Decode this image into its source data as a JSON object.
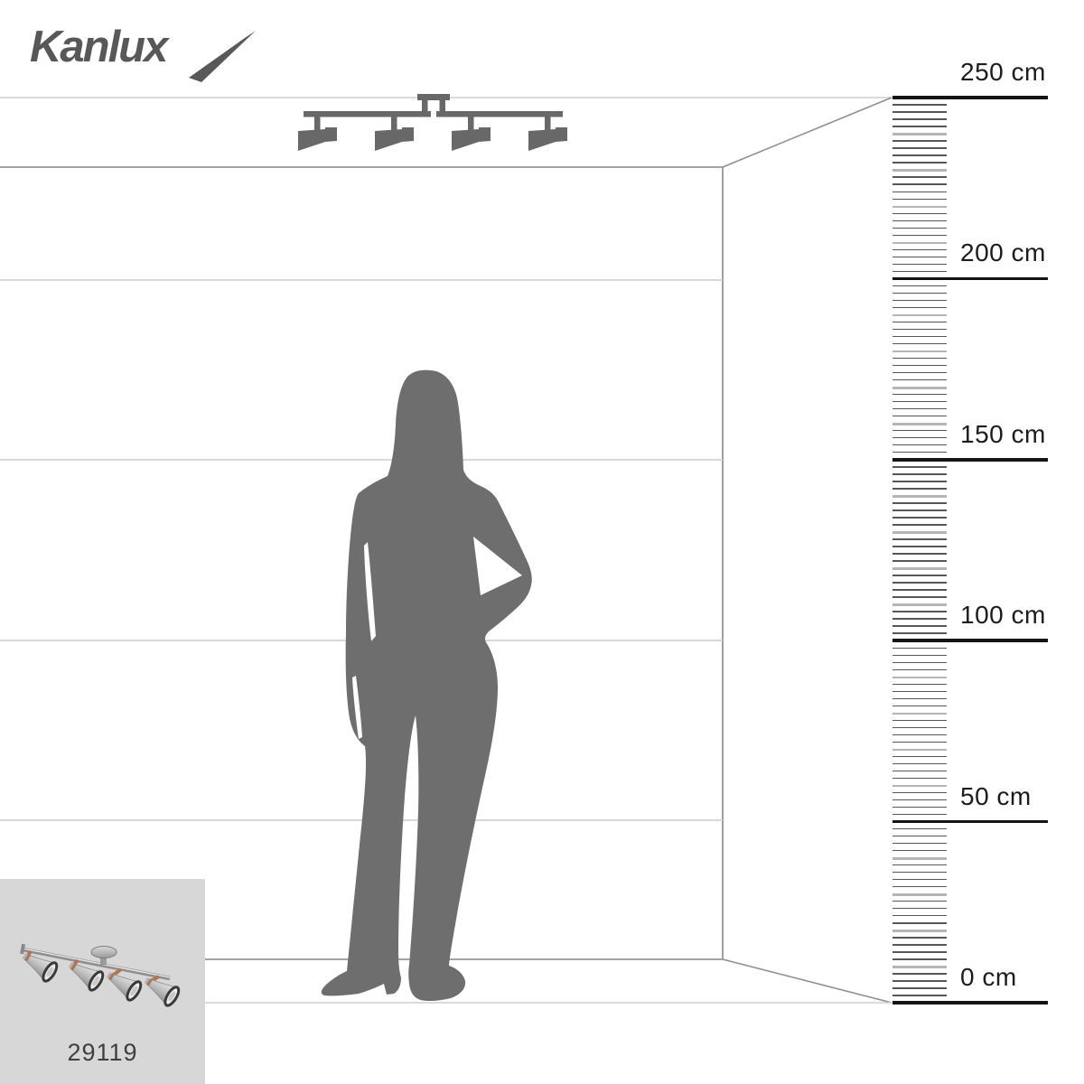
{
  "brand": {
    "logo_text": "Kanlux"
  },
  "product_thumbnail": {
    "code": "29119",
    "image_alt": "four-spot-ceiling-light-photo"
  },
  "silhouettes": {
    "fixture": "ceiling-mounted-4-spot-light-silhouette",
    "person": "standing-woman-silhouette"
  },
  "scale_ruler": {
    "unit": "cm",
    "max_cm": 250,
    "major_step_cm": 50,
    "minor_step_cm": 2,
    "marks": [
      250,
      200,
      150,
      100,
      50,
      0
    ],
    "labels": [
      "250 cm",
      "200 cm",
      "150 cm",
      "100 cm",
      "50 cm",
      "0 cm"
    ]
  },
  "colors": {
    "silhouette_gray": "#6e6e6e",
    "fixture_gray": "#686868",
    "logo_gray": "#58585a",
    "line_light": "#cfcfcf",
    "line_mid": "#949494",
    "ruler_black": "#141414",
    "tick_dark": "#565656",
    "tick_light": "#b5b5b5",
    "thumb_background": "#d7d7d7",
    "copper": "#b5744f"
  }
}
